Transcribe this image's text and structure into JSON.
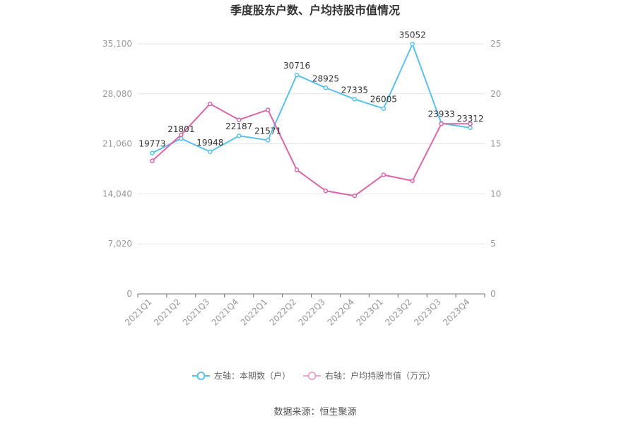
{
  "chart_data": {
    "type": "line",
    "title": "季度股东户数、户均持股市值情况",
    "categories": [
      "2021Q1",
      "2021Q2",
      "2021Q3",
      "2021Q4",
      "2022Q1",
      "2022Q2",
      "2022Q3",
      "2022Q4",
      "2023Q1",
      "2023Q2",
      "2023Q3",
      "2023Q4"
    ],
    "left_axis": {
      "ticks": [
        "0",
        "7,020",
        "14,040",
        "21,060",
        "28,080",
        "35,100"
      ],
      "ylim": [
        0,
        35100
      ]
    },
    "right_axis": {
      "ticks": [
        "0",
        "5",
        "10",
        "15",
        "20",
        "25"
      ],
      "ylim": [
        0,
        25
      ]
    },
    "series": [
      {
        "name": "左轴：本期数（户）",
        "axis": "left",
        "color": "#5bc0eb",
        "values": [
          19773,
          21801,
          19948,
          22187,
          21571,
          30716,
          28925,
          27335,
          26005,
          35052,
          23933,
          23312
        ],
        "labels": [
          "19773",
          "21801",
          "19948",
          "22187",
          "21571",
          "30716",
          "28925",
          "27335",
          "26005",
          "35052",
          "23933",
          "23312"
        ]
      },
      {
        "name": "右轴：户均持股市值（万元）",
        "axis": "right",
        "color": "#d966a8",
        "values": [
          13.3,
          15.9,
          19.0,
          17.4,
          18.4,
          12.4,
          10.3,
          9.8,
          11.9,
          11.3,
          17.0,
          17.0
        ]
      }
    ],
    "grid": true,
    "legend_position": "bottom"
  },
  "footer": {
    "source": "数据来源：恒生聚源"
  }
}
